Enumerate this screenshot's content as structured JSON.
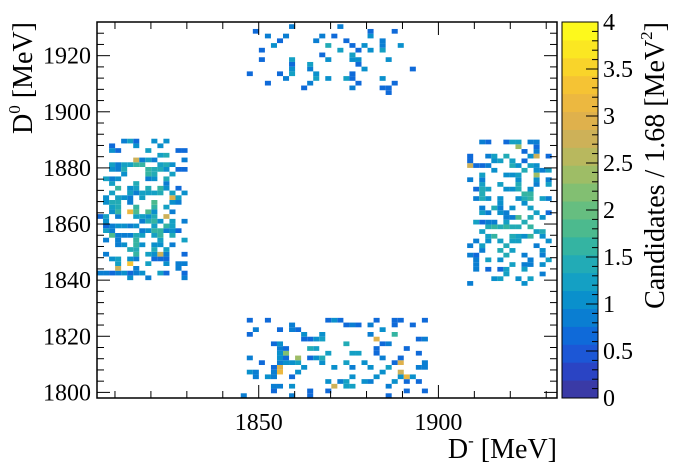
{
  "chart_data": {
    "type": "heatmap",
    "xlabel": "D",
    "xlabel_sup": "-",
    "xlabel_unit": "[MeV]",
    "ylabel": "D",
    "ylabel_sup": "0",
    "ylabel_unit": "[MeV]",
    "zlabel": "Candidates / 1.68 [MeV",
    "zlabel_sup": "2",
    "zlabel_end": "]",
    "xlim": [
      1805,
      1933
    ],
    "ylim": [
      1798,
      1932
    ],
    "zlim": [
      0,
      4
    ],
    "x_ticks": [
      {
        "value": 1850,
        "label": "1850"
      },
      {
        "value": 1900,
        "label": "1900"
      }
    ],
    "y_ticks": [
      {
        "value": 1800,
        "label": "1800"
      },
      {
        "value": 1820,
        "label": "1820"
      },
      {
        "value": 1840,
        "label": "1840"
      },
      {
        "value": 1860,
        "label": "1860"
      },
      {
        "value": 1880,
        "label": "1880"
      },
      {
        "value": 1900,
        "label": "1900"
      },
      {
        "value": 1920,
        "label": "1920"
      }
    ],
    "z_ticks": [
      {
        "value": 0,
        "label": "0"
      },
      {
        "value": 0.5,
        "label": "0.5"
      },
      {
        "value": 1,
        "label": "1"
      },
      {
        "value": 1.5,
        "label": "1.5"
      },
      {
        "value": 2,
        "label": "2"
      },
      {
        "value": 2.5,
        "label": "2.5"
      },
      {
        "value": 3,
        "label": "3"
      },
      {
        "value": 3.5,
        "label": "3.5"
      },
      {
        "value": 4,
        "label": "4"
      }
    ],
    "bin_size": 1.68,
    "clusters": [
      {
        "name": "top",
        "x_range": [
          1845,
          1893
        ],
        "y_range": [
          1906,
          1932
        ],
        "density": 0.2,
        "level": 1.2
      },
      {
        "name": "bottom",
        "x_range": [
          1845,
          1896
        ],
        "y_range": [
          1798,
          1825
        ],
        "density": 0.3,
        "level": 1.3
      },
      {
        "name": "left",
        "x_range": [
          1805,
          1830
        ],
        "y_range": [
          1840,
          1890
        ],
        "density": 0.55,
        "level": 1.6
      },
      {
        "name": "right",
        "x_range": [
          1908,
          1933
        ],
        "y_range": [
          1838,
          1890
        ],
        "density": 0.45,
        "level": 1.5
      }
    ],
    "colormap": [
      "#3a3aa6",
      "#2a44c4",
      "#1c57d6",
      "#0f6ad9",
      "#0a7ed2",
      "#0a90cc",
      "#14a0c4",
      "#22abb6",
      "#34b4a2",
      "#4cba8e",
      "#66be80",
      "#82bf72",
      "#9ebd66",
      "#b8b85e",
      "#cdb158",
      "#dfb14c",
      "#ecb840",
      "#f5c334",
      "#f9d42a",
      "#fbe722",
      "#fdf91c"
    ]
  }
}
